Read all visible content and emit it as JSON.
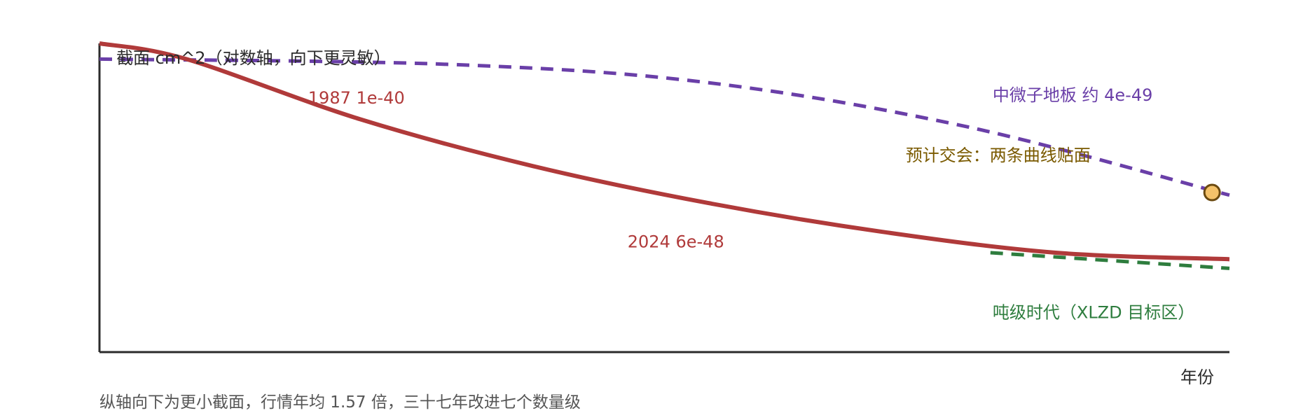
{
  "chart_data": {
    "type": "line",
    "x_axis_label": "年份",
    "y_axis_label": "截面 cm^2（对数轴，向下更灵敏）",
    "y_scale": "log",
    "y_inverted": true,
    "x_range": [
      1984,
      2036
    ],
    "y_range_log10": [
      -39.7,
      -51.5
    ],
    "grid": false,
    "caption": "纵轴向下为更小截面，行情年均 1.57 倍，三十七年改进七个数量级",
    "series": [
      {
        "key": "trend",
        "style": "solid",
        "color": "#b03a3a",
        "points": [
          {
            "x": 1984,
            "y_log10": -39.7
          },
          {
            "x": 1988,
            "y_log10": -40.3
          },
          {
            "x": 1996,
            "y_log10": -42.6
          },
          {
            "x": 2004,
            "y_log10": -44.4
          },
          {
            "x": 2012,
            "y_log10": -45.8
          },
          {
            "x": 2020,
            "y_log10": -46.9
          },
          {
            "x": 2028,
            "y_log10": -47.7
          },
          {
            "x": 2036,
            "y_log10": -47.95
          }
        ]
      },
      {
        "key": "tonne",
        "style": "dashed",
        "color": "#2e7d3e",
        "points": [
          {
            "x": 2025,
            "y_log10": -47.7
          },
          {
            "x": 2036,
            "y_log10": -48.3
          }
        ]
      },
      {
        "key": "floor",
        "style": "dashed",
        "color": "#6a3fa8",
        "points": [
          {
            "x": 1984,
            "y_log10": -40.3
          },
          {
            "x": 2000,
            "y_log10": -40.5
          },
          {
            "x": 2012,
            "y_log10": -41.2
          },
          {
            "x": 2024,
            "y_log10": -42.9
          },
          {
            "x": 2036,
            "y_log10": -45.5
          }
        ]
      }
    ],
    "annotations": [
      {
        "key": "a1987",
        "text": "1987 1e-40",
        "x": 1993.6,
        "y_log10": -42.0,
        "color": "#b03a3a"
      },
      {
        "key": "a2024",
        "text": "2024 6e-48",
        "x": 2008.3,
        "y_log10": -47.5,
        "color": "#b03a3a"
      },
      {
        "key": "floor",
        "text": "中微子地板 约 4e-49",
        "x": 2025.1,
        "y_log10": -41.9,
        "color": "#6a3fa8"
      },
      {
        "key": "cross",
        "text": "预计交会：两条曲线贴面",
        "x": 2021.1,
        "y_log10": -44.2,
        "color": "#7a5a00"
      },
      {
        "key": "tonne",
        "text": "吨级时代（XLZD 目标区）",
        "x": 2025.1,
        "y_log10": -50.2,
        "color": "#2e7d3e"
      }
    ],
    "marker": {
      "x": 2035.2,
      "y_log10": -45.4,
      "fill": "#f4c26a",
      "stroke": "#6b4a10"
    }
  }
}
